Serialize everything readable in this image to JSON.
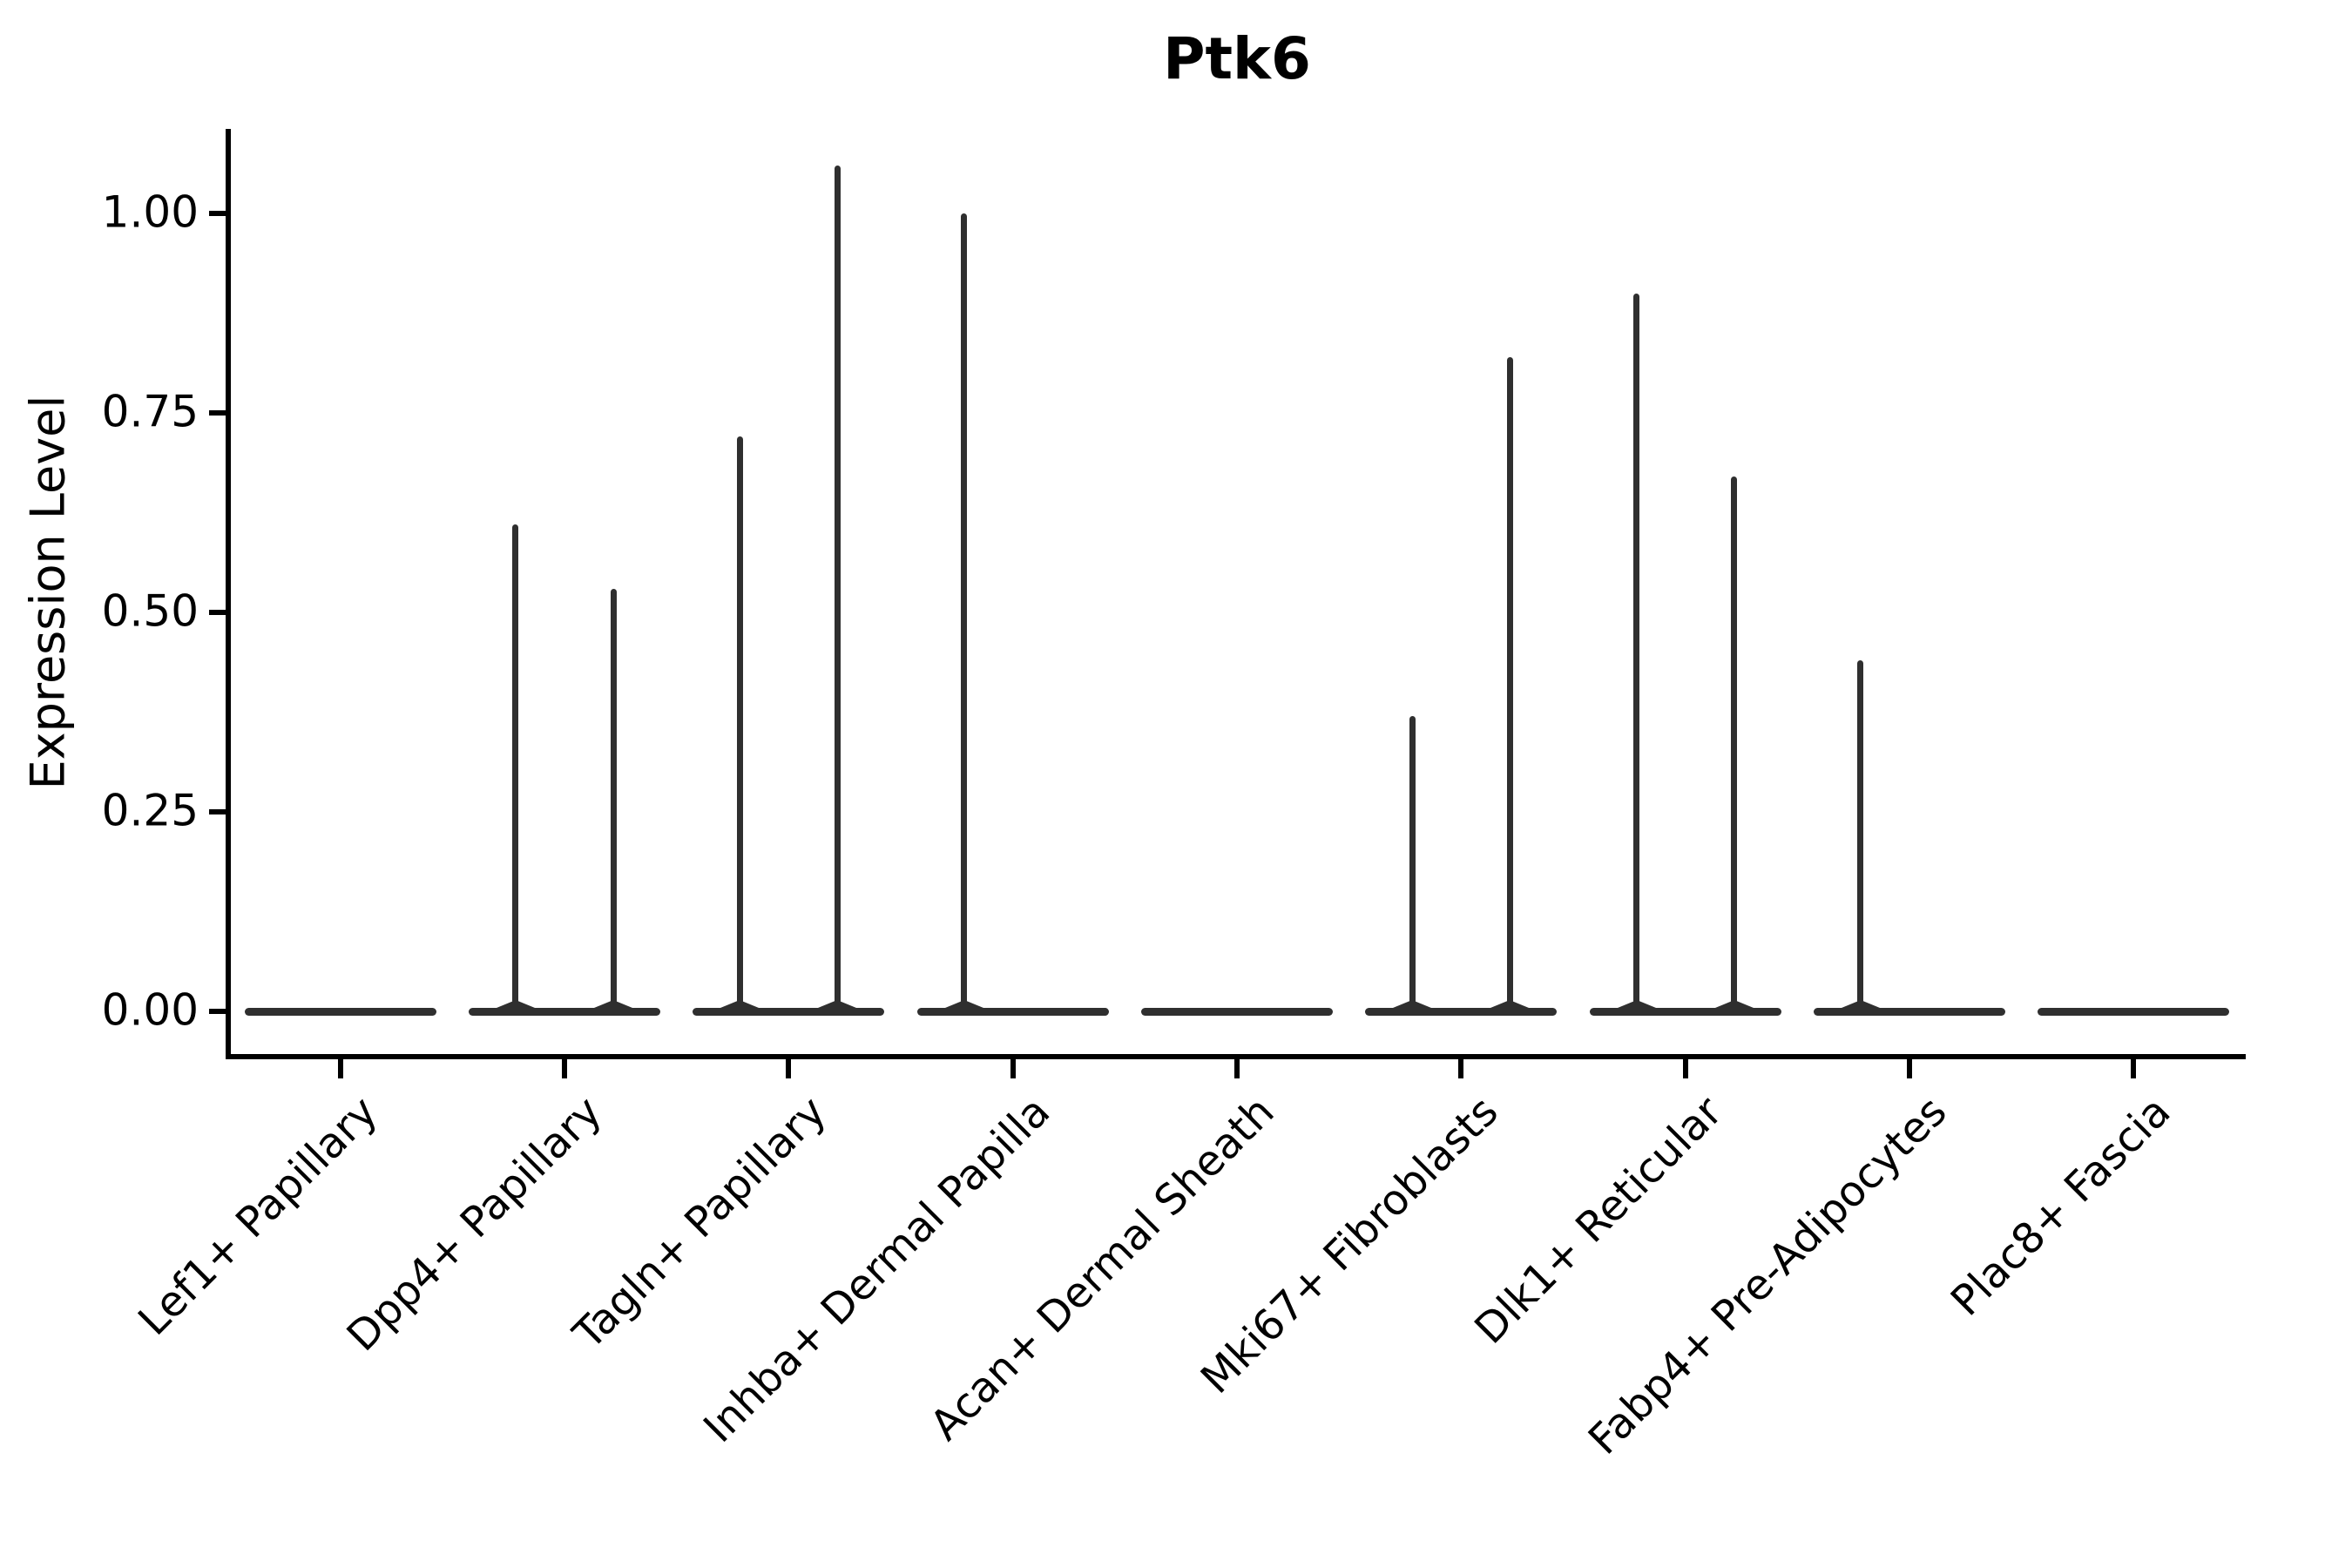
{
  "chart_data": {
    "type": "violin",
    "title": "Ptk6",
    "xlabel": "",
    "ylabel": "Expression Level",
    "ylim": [
      0,
      1.1
    ],
    "grid": false,
    "legend": "none",
    "yticks": [
      0.0,
      0.25,
      0.5,
      0.75,
      1.0
    ],
    "ytick_labels": [
      "0.00",
      "0.25",
      "0.50",
      "0.75",
      "1.00"
    ],
    "categories": [
      "Lef1+ Papillary",
      "Dpp4+ Papillary",
      "Tagln+ Papillary",
      "Inhba+ Dermal Papilla",
      "Acan+ Dermal Sheath",
      "Mki67+ Fibroblasts",
      "Dlk1+ Reticular",
      "Fabp4+ Pre-Adipocytes",
      "Plac8+ Fascia"
    ],
    "violins": [
      {
        "category": "Lef1+ Papillary",
        "baseline_value": 0,
        "spikes": []
      },
      {
        "category": "Dpp4+ Papillary",
        "baseline_value": 0,
        "spikes": [
          {
            "pos": -0.218,
            "value": 0.61
          },
          {
            "pos": 0.218,
            "value": 0.53
          }
        ]
      },
      {
        "category": "Tagln+ Papillary",
        "baseline_value": 0,
        "spikes": [
          {
            "pos": -0.218,
            "value": 0.72
          },
          {
            "pos": 0.218,
            "value": 1.06
          }
        ]
      },
      {
        "category": "Inhba+ Dermal Papilla",
        "baseline_value": 0,
        "spikes": [
          {
            "pos": -0.218,
            "value": 1.0
          }
        ]
      },
      {
        "category": "Acan+ Dermal Sheath",
        "baseline_value": 0,
        "spikes": []
      },
      {
        "category": "Mki67+ Fibroblasts",
        "baseline_value": 0,
        "spikes": [
          {
            "pos": -0.218,
            "value": 0.37
          },
          {
            "pos": 0.218,
            "value": 0.82
          }
        ]
      },
      {
        "category": "Dlk1+ Reticular",
        "baseline_value": 0,
        "spikes": [
          {
            "pos": -0.218,
            "value": 0.9
          },
          {
            "pos": 0.218,
            "value": 0.67
          }
        ]
      },
      {
        "category": "Fabp4+ Pre-Adipocytes",
        "baseline_value": 0,
        "spikes": [
          {
            "pos": -0.218,
            "value": 0.44
          }
        ]
      },
      {
        "category": "Plac8+ Fascia",
        "baseline_value": 0,
        "spikes": []
      }
    ],
    "colors": {
      "violin_stroke": "#2f2f2f",
      "axis": "#000000",
      "text": "#000000",
      "background": "#ffffff"
    }
  }
}
